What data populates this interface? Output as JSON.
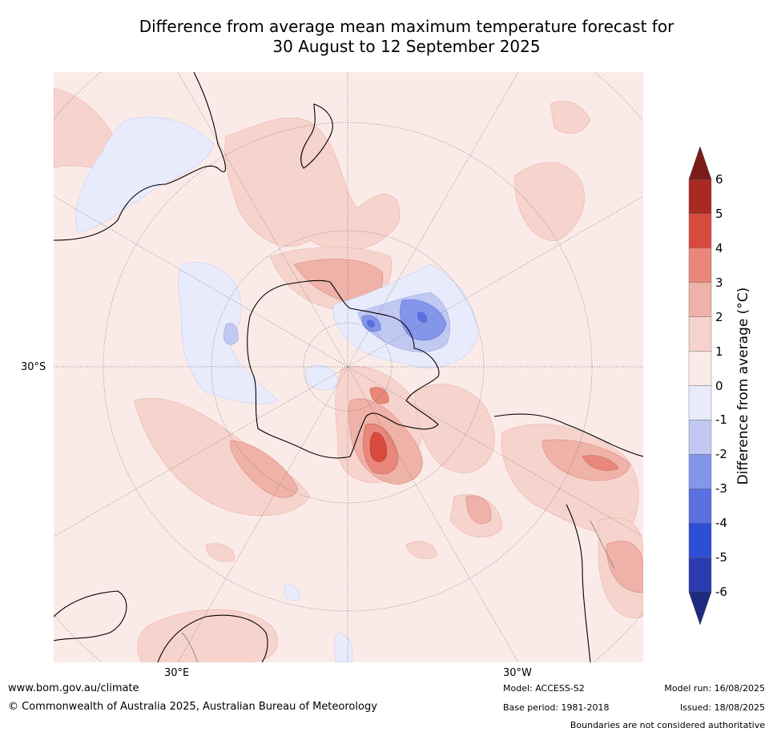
{
  "title": {
    "line1": "Difference from average mean maximum temperature forecast for",
    "line2": "30 August to 12 September 2025"
  },
  "map": {
    "projection": "south polar stereographic",
    "lat_label": "30°S",
    "lon_labels": [
      "30°E",
      "30°W"
    ]
  },
  "colorbar": {
    "label": "Difference from average (°C)",
    "ticks": [
      "6",
      "5",
      "4",
      "3",
      "2",
      "1",
      "0",
      "-1",
      "-2",
      "-3",
      "-4",
      "-5",
      "-6"
    ],
    "colors": [
      "#a82a22",
      "#d74b3e",
      "#e8877a",
      "#efb2a8",
      "#f7d3cd",
      "#fbebe8",
      "#e8ebfb",
      "#c1c8f1",
      "#8496e9",
      "#5a6fe0",
      "#2f4ed8",
      "#2a3cb0"
    ],
    "over_color": "#7a1c18",
    "under_color": "#1d2a80"
  },
  "footer": {
    "website": "www.bom.gov.au/climate",
    "copyright": "© Commonwealth of Australia 2025, Australian Bureau of Meteorology",
    "model": "Model: ACCESS-S2",
    "base_period": "Base period: 1981-2018",
    "model_run": "Model run: 16/08/2025",
    "issued": "Issued: 18/08/2025",
    "disclaimer": "Boundaries are not considered authoritative"
  }
}
